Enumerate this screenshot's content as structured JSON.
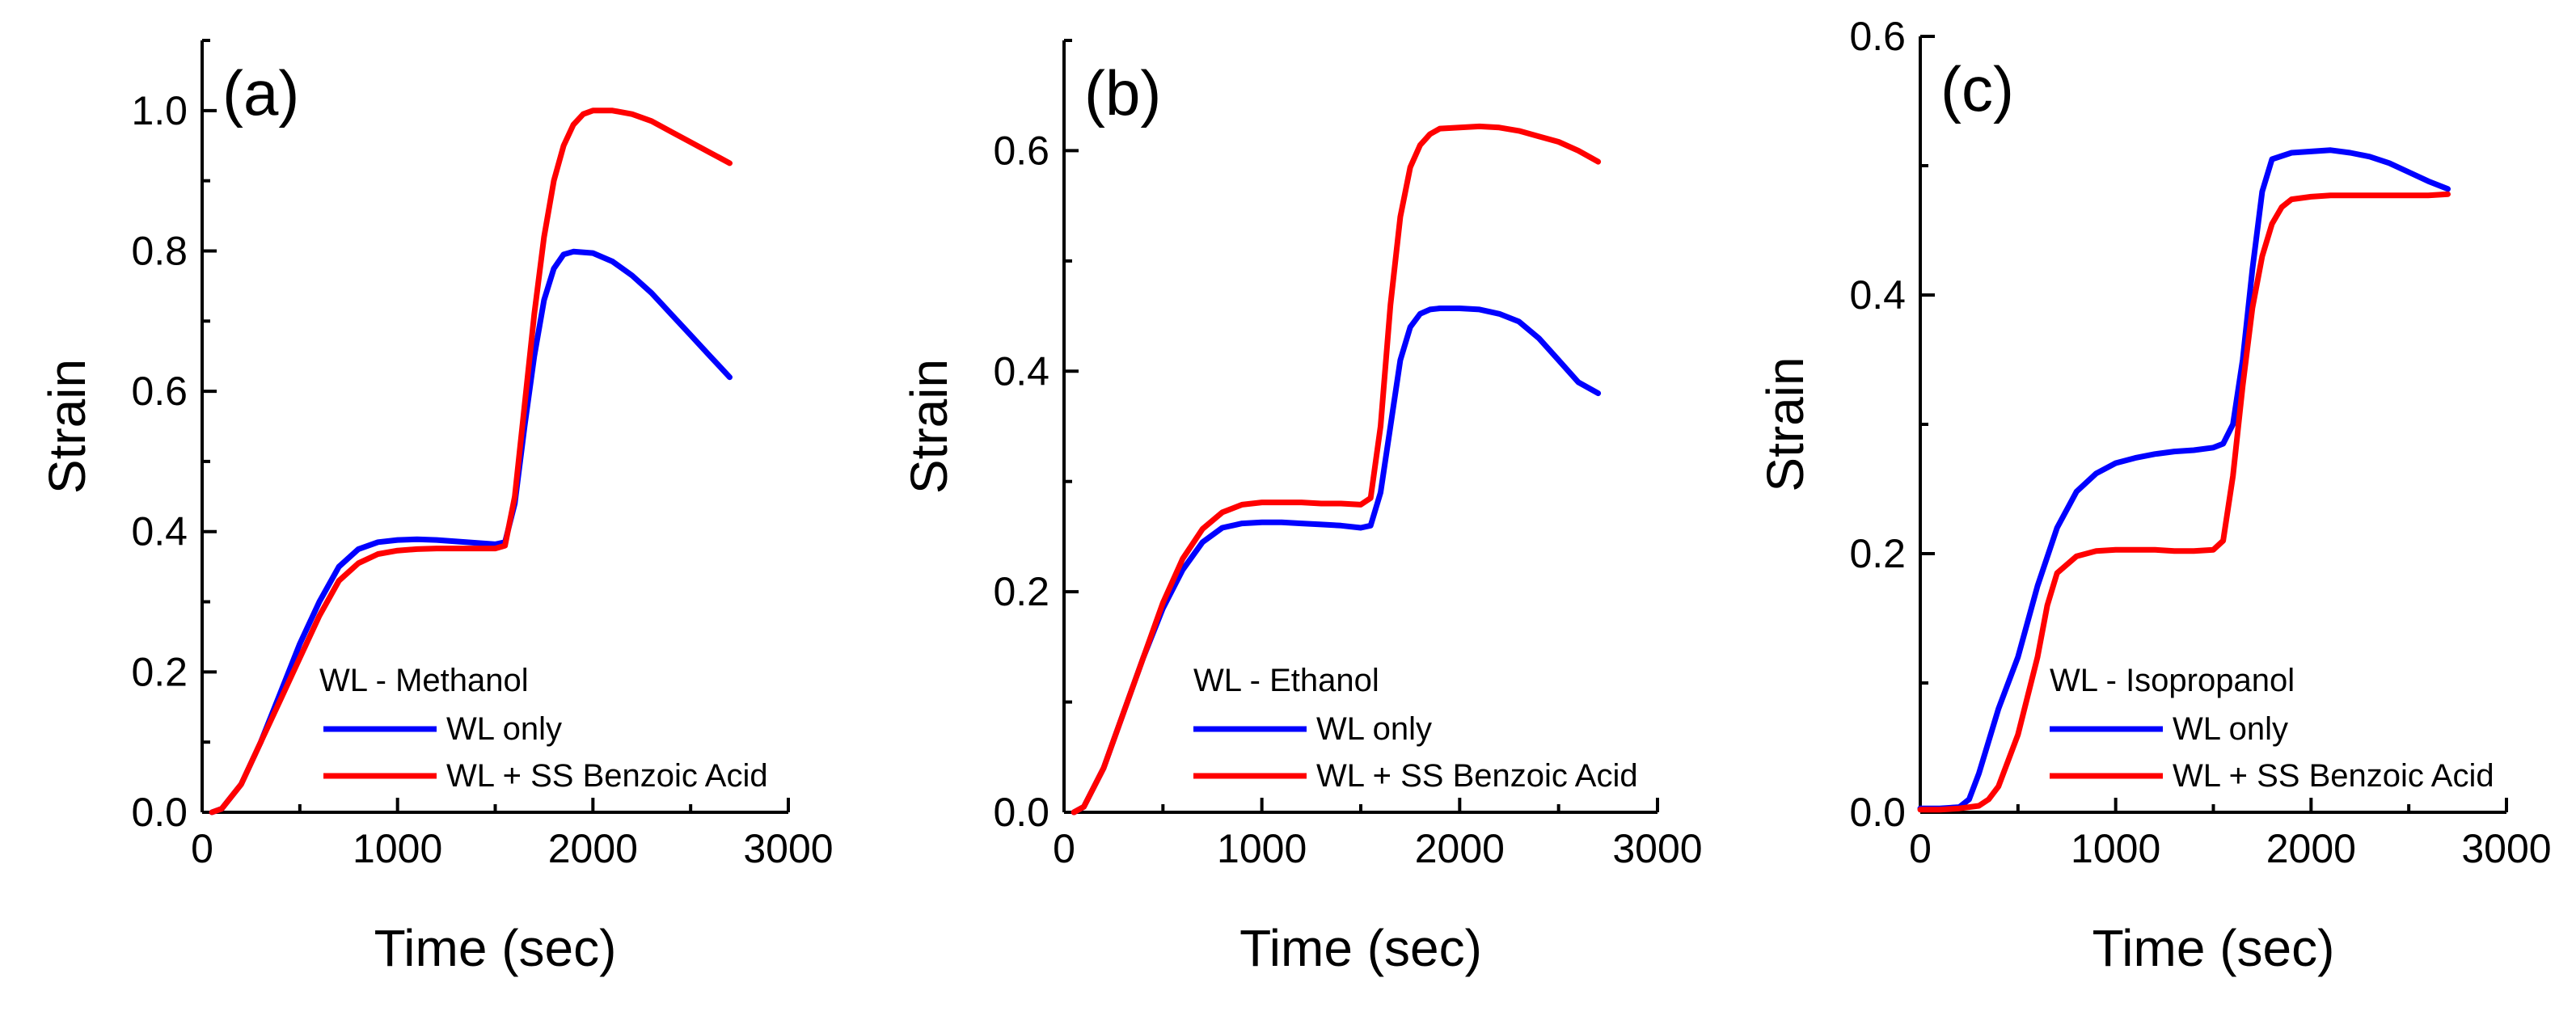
{
  "chart_data": [
    {
      "type": "line",
      "panel_label": "(a)",
      "xlabel": "Time (sec)",
      "ylabel": "Strain",
      "xlim": [
        0,
        3000
      ],
      "ylim": [
        0,
        1.1
      ],
      "xticks": [
        0,
        1000,
        2000,
        3000
      ],
      "xtick_labels": [
        "0",
        "1000",
        "2000",
        "3000"
      ],
      "yticks": [
        0,
        0.2,
        0.4,
        0.6,
        0.8,
        1.0
      ],
      "ytick_labels": [
        "0.0",
        "0.2",
        "0.4",
        "0.6",
        "0.8",
        "1.0"
      ],
      "legend_title": "WL - Methanol",
      "legend_position": "bottom-right",
      "series": [
        {
          "name": "WL only",
          "color": "#0000ff",
          "x": [
            50,
            100,
            200,
            300,
            400,
            500,
            600,
            700,
            800,
            900,
            1000,
            1100,
            1200,
            1300,
            1400,
            1500,
            1550,
            1600,
            1650,
            1700,
            1750,
            1800,
            1850,
            1900,
            2000,
            2100,
            2200,
            2300,
            2400,
            2500,
            2600,
            2700
          ],
          "y": [
            0,
            0.005,
            0.04,
            0.1,
            0.17,
            0.24,
            0.3,
            0.35,
            0.375,
            0.385,
            0.388,
            0.389,
            0.388,
            0.386,
            0.384,
            0.382,
            0.385,
            0.44,
            0.55,
            0.65,
            0.73,
            0.775,
            0.795,
            0.799,
            0.797,
            0.785,
            0.765,
            0.74,
            0.71,
            0.68,
            0.65,
            0.62
          ]
        },
        {
          "name": "WL + SS Benzoic Acid",
          "color": "#ff0000",
          "x": [
            50,
            100,
            200,
            300,
            400,
            500,
            600,
            700,
            800,
            900,
            1000,
            1100,
            1200,
            1300,
            1400,
            1500,
            1550,
            1600,
            1650,
            1700,
            1750,
            1800,
            1850,
            1900,
            1950,
            2000,
            2100,
            2200,
            2300,
            2400,
            2500,
            2600,
            2700
          ],
          "y": [
            0,
            0.005,
            0.04,
            0.1,
            0.16,
            0.22,
            0.28,
            0.33,
            0.355,
            0.368,
            0.373,
            0.375,
            0.376,
            0.376,
            0.376,
            0.376,
            0.38,
            0.45,
            0.58,
            0.71,
            0.82,
            0.9,
            0.95,
            0.98,
            0.995,
            1.0,
            1.0,
            0.995,
            0.985,
            0.97,
            0.955,
            0.94,
            0.925
          ]
        }
      ]
    },
    {
      "type": "line",
      "panel_label": "(b)",
      "xlabel": "Time (sec)",
      "ylabel": "Strain",
      "xlim": [
        0,
        3000
      ],
      "ylim": [
        0,
        0.7
      ],
      "xticks": [
        0,
        1000,
        2000,
        3000
      ],
      "xtick_labels": [
        "0",
        "1000",
        "2000",
        "3000"
      ],
      "yticks": [
        0,
        0.2,
        0.4,
        0.6
      ],
      "ytick_labels": [
        "0.0",
        "0.2",
        "0.4",
        "0.6"
      ],
      "legend_title": "WL - Ethanol",
      "legend_position": "bottom-right",
      "series": [
        {
          "name": "WL only",
          "color": "#0000ff",
          "x": [
            50,
            100,
            200,
            300,
            400,
            500,
            600,
            700,
            800,
            900,
            1000,
            1100,
            1200,
            1300,
            1400,
            1500,
            1550,
            1600,
            1650,
            1700,
            1750,
            1800,
            1850,
            1900,
            2000,
            2100,
            2200,
            2300,
            2400,
            2500,
            2600,
            2700
          ],
          "y": [
            0,
            0.005,
            0.04,
            0.09,
            0.14,
            0.185,
            0.22,
            0.245,
            0.258,
            0.262,
            0.263,
            0.263,
            0.262,
            0.261,
            0.26,
            0.258,
            0.26,
            0.29,
            0.35,
            0.41,
            0.44,
            0.452,
            0.456,
            0.457,
            0.457,
            0.456,
            0.452,
            0.445,
            0.43,
            0.41,
            0.39,
            0.38
          ]
        },
        {
          "name": "WL + SS Benzoic Acid",
          "color": "#ff0000",
          "x": [
            50,
            100,
            200,
            300,
            400,
            500,
            600,
            700,
            800,
            900,
            1000,
            1100,
            1200,
            1300,
            1400,
            1500,
            1550,
            1600,
            1650,
            1700,
            1750,
            1800,
            1850,
            1900,
            2000,
            2100,
            2200,
            2300,
            2400,
            2500,
            2600,
            2700
          ],
          "y": [
            0,
            0.005,
            0.04,
            0.09,
            0.14,
            0.19,
            0.23,
            0.257,
            0.272,
            0.279,
            0.281,
            0.281,
            0.281,
            0.28,
            0.28,
            0.279,
            0.285,
            0.35,
            0.46,
            0.54,
            0.585,
            0.605,
            0.615,
            0.62,
            0.621,
            0.622,
            0.621,
            0.618,
            0.613,
            0.608,
            0.6,
            0.59
          ]
        }
      ]
    },
    {
      "type": "line",
      "panel_label": "(c)",
      "xlabel": "Time (sec)",
      "ylabel": "Strain",
      "xlim": [
        0,
        3000
      ],
      "ylim": [
        0,
        0.6
      ],
      "xticks": [
        0,
        1000,
        2000,
        3000
      ],
      "xtick_labels": [
        "0",
        "1000",
        "2000",
        "3000"
      ],
      "yticks": [
        0,
        0.2,
        0.4,
        0.6
      ],
      "ytick_labels": [
        "0.0",
        "0.2",
        "0.4",
        "0.6"
      ],
      "legend_title": "WL - Isopropanol",
      "legend_position": "bottom-right",
      "series": [
        {
          "name": "WL only",
          "color": "#0000ff",
          "x": [
            0,
            100,
            200,
            250,
            300,
            350,
            400,
            500,
            600,
            700,
            800,
            900,
            1000,
            1100,
            1200,
            1300,
            1400,
            1500,
            1550,
            1600,
            1650,
            1700,
            1750,
            1800,
            1900,
            2000,
            2100,
            2200,
            2300,
            2400,
            2500,
            2600,
            2700
          ],
          "y": [
            0.003,
            0.003,
            0.004,
            0.01,
            0.03,
            0.055,
            0.08,
            0.12,
            0.175,
            0.22,
            0.248,
            0.262,
            0.27,
            0.274,
            0.277,
            0.279,
            0.28,
            0.282,
            0.285,
            0.3,
            0.35,
            0.42,
            0.48,
            0.505,
            0.51,
            0.511,
            0.512,
            0.51,
            0.507,
            0.502,
            0.495,
            0.488,
            0.482
          ]
        },
        {
          "name": "WL + SS Benzoic Acid",
          "color": "#ff0000",
          "x": [
            0,
            100,
            200,
            300,
            350,
            400,
            500,
            600,
            650,
            700,
            800,
            900,
            1000,
            1100,
            1200,
            1300,
            1400,
            1500,
            1550,
            1600,
            1650,
            1700,
            1750,
            1800,
            1850,
            1900,
            2000,
            2100,
            2200,
            2300,
            2400,
            2500,
            2600,
            2700
          ],
          "y": [
            0.002,
            0.002,
            0.003,
            0.005,
            0.01,
            0.02,
            0.06,
            0.12,
            0.16,
            0.185,
            0.198,
            0.202,
            0.203,
            0.203,
            0.203,
            0.202,
            0.202,
            0.203,
            0.21,
            0.26,
            0.33,
            0.39,
            0.43,
            0.455,
            0.468,
            0.474,
            0.476,
            0.477,
            0.477,
            0.477,
            0.477,
            0.477,
            0.477,
            0.478
          ]
        }
      ]
    }
  ]
}
